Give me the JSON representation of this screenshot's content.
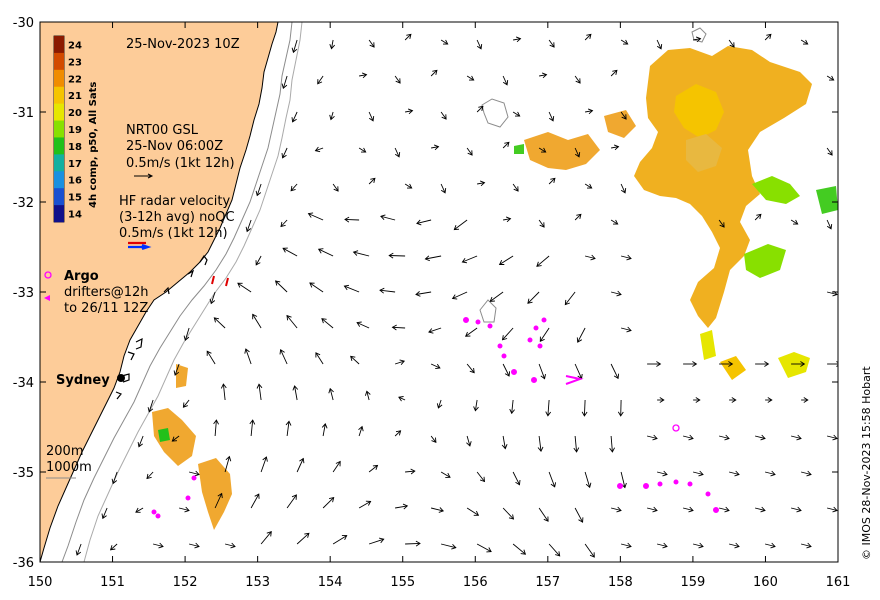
{
  "header": {
    "timestamp": "25-Nov-2023 10Z"
  },
  "colorbar": {
    "title": "4h comp, p50, All Sats",
    "labels": [
      "24",
      "23",
      "22",
      "21",
      "20",
      "19",
      "18",
      "17",
      "16",
      "15",
      "14"
    ],
    "colors": [
      "#8b1a00",
      "#d24a00",
      "#f08c00",
      "#f5c400",
      "#e6e600",
      "#88e000",
      "#22c01a",
      "#12b0a0",
      "#1a90e0",
      "#1a50d0",
      "#10108a"
    ]
  },
  "legend": {
    "gsl_lines": [
      "NRT00 GSL",
      "25-Nov 06:00Z",
      "0.5m/s (1kt 12h)"
    ],
    "hf_lines": [
      "HF radar velocity",
      "(3-12h avg) noQC",
      "0.5m/s (1kt 12h)"
    ],
    "argo_label": "Argo",
    "drifter_lines": [
      "drifters@12h",
      "to 26/11 12Z"
    ],
    "place": "Sydney",
    "depth_lines": [
      "200m",
      "1000m"
    ]
  },
  "credit": "© IMOS 28-Nov-2023 15:58 Hobart",
  "axes": {
    "x_ticks": [
      "150",
      "151",
      "152",
      "153",
      "154",
      "155",
      "156",
      "157",
      "158",
      "159",
      "160",
      "161"
    ],
    "y_ticks": [
      "-30",
      "-31",
      "-32",
      "-33",
      "-34",
      "-35",
      "-36"
    ]
  },
  "colors": {
    "land": "#fdcc99",
    "coast": "#000000",
    "arrow": "#000000",
    "drifter": "#ff00ff",
    "radar_red": "#e00000",
    "radar_blue": "#0030ff"
  }
}
